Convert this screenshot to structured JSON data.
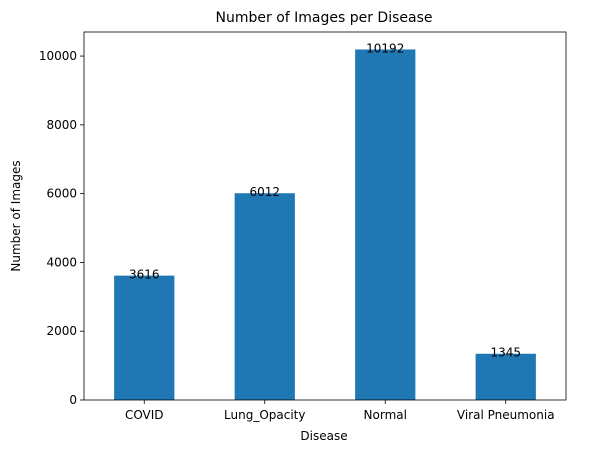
{
  "chart_data": {
    "type": "bar",
    "title": "Number of Images per Disease",
    "xlabel": "Disease",
    "ylabel": "Number of Images",
    "categories": [
      "COVID",
      "Lung_Opacity",
      "Normal",
      "Viral Pneumonia"
    ],
    "values": [
      3616,
      6012,
      10192,
      1345
    ],
    "data_labels": [
      "3616",
      "6012",
      "10192",
      "1345"
    ],
    "ylim": [
      0,
      10700
    ],
    "yticks": [
      0,
      2000,
      4000,
      6000,
      8000,
      10000
    ],
    "grid": false,
    "bar_color": "#1f77b4"
  }
}
